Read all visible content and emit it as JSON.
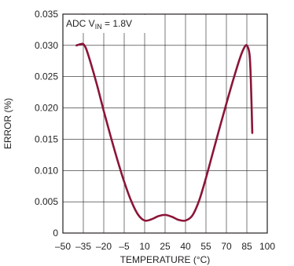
{
  "chart_data": {
    "type": "line",
    "annotation": {
      "prefix": "ADC V",
      "subscript": "IN",
      "suffix": " = 1.8V"
    },
    "xlabel": "TEMPERATURE (°C)",
    "ylabel": "ERROR (%)",
    "xlim": [
      -50,
      100
    ],
    "ylim": [
      0,
      0.035
    ],
    "x_ticks": [
      {
        "value": -50,
        "label": "–50"
      },
      {
        "value": -35,
        "label": "–35"
      },
      {
        "value": -20,
        "label": "–20"
      },
      {
        "value": -5,
        "label": "–5"
      },
      {
        "value": 10,
        "label": "10"
      },
      {
        "value": 25,
        "label": "25"
      },
      {
        "value": 40,
        "label": "40"
      },
      {
        "value": 55,
        "label": "55"
      },
      {
        "value": 70,
        "label": "70"
      },
      {
        "value": 85,
        "label": "85"
      },
      {
        "value": 100,
        "label": "100"
      }
    ],
    "y_ticks": [
      {
        "value": 0,
        "label": "0"
      },
      {
        "value": 0.005,
        "label": "0.005"
      },
      {
        "value": 0.01,
        "label": "0.010"
      },
      {
        "value": 0.015,
        "label": "0.015"
      },
      {
        "value": 0.02,
        "label": "0.020"
      },
      {
        "value": 0.025,
        "label": "0.025"
      },
      {
        "value": 0.03,
        "label": "0.030"
      },
      {
        "value": 0.035,
        "label": "0.035"
      }
    ],
    "grid": true,
    "line_color": "#8b1538",
    "series": [
      {
        "x": [
          -40,
          -37,
          -35,
          -33,
          -30,
          -25,
          -20,
          -15,
          -10,
          -5,
          0,
          5,
          10,
          15,
          20,
          25,
          30,
          35,
          40,
          45,
          50,
          55,
          60,
          65,
          70,
          75,
          80,
          83,
          85,
          87,
          88,
          89
        ],
        "y": [
          0.03,
          0.0302,
          0.0302,
          0.0295,
          0.0275,
          0.0237,
          0.0195,
          0.0155,
          0.0117,
          0.0082,
          0.0052,
          0.003,
          0.002,
          0.0022,
          0.0027,
          0.0029,
          0.0026,
          0.0021,
          0.002,
          0.0028,
          0.0052,
          0.0088,
          0.0128,
          0.0168,
          0.0207,
          0.0245,
          0.028,
          0.0296,
          0.03,
          0.0285,
          0.024,
          0.016
        ]
      }
    ]
  }
}
